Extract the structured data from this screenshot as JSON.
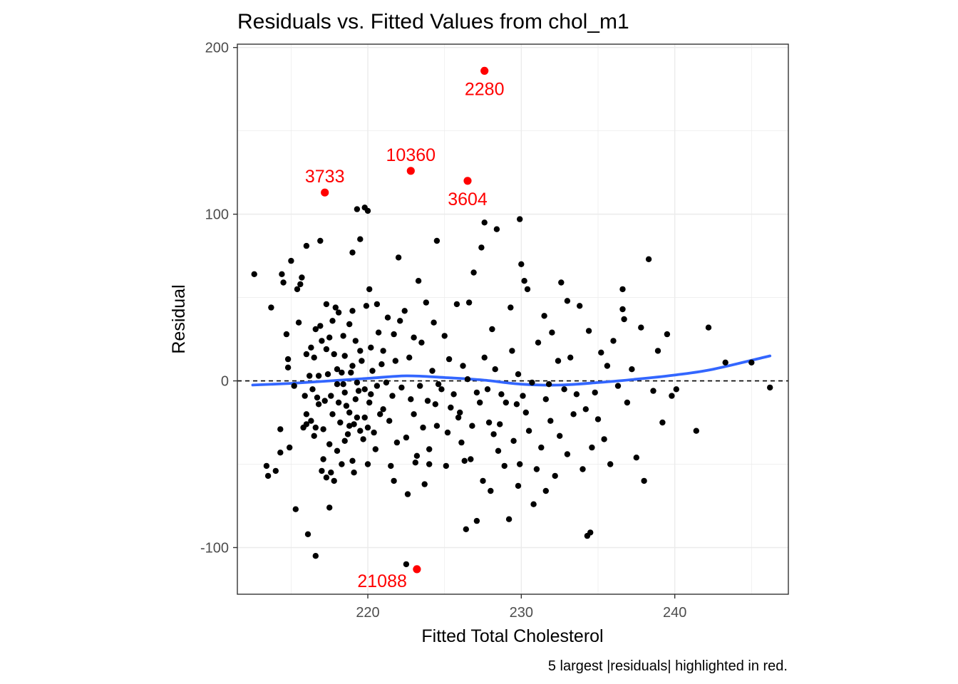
{
  "chart_data": {
    "type": "scatter",
    "title": "Residuals vs. Fitted Values from chol_m1",
    "xlabel": "Fitted Total Cholesterol",
    "ylabel": "Residual",
    "caption": "5 largest |residuals| highlighted in red.",
    "xlim": [
      211.5,
      247.4
    ],
    "ylim": [
      -128,
      202
    ],
    "x_ticks": [
      220,
      230,
      240
    ],
    "y_ticks": [
      -100,
      0,
      100,
      200
    ],
    "grid": true,
    "reference_line": {
      "y": 0,
      "style": "dashed",
      "color": "#000000"
    },
    "smooth": {
      "method": "loess",
      "color": "#3366FF",
      "x": [
        212.5,
        215,
        217.5,
        220,
        222.5,
        225,
        227.5,
        230,
        232.5,
        235,
        237.5,
        240,
        242.5,
        246.2
      ],
      "y": [
        -2.5,
        -1.5,
        0,
        1.5,
        3,
        2,
        0.5,
        -2,
        -2.5,
        -1,
        1,
        3.5,
        7,
        15
      ]
    },
    "highlight_color": "#FF0000",
    "highlighted": [
      {
        "id": "2280",
        "x": 227.6,
        "y": 186,
        "label_pos": "below"
      },
      {
        "id": "10360",
        "x": 222.8,
        "y": 126,
        "label_pos": "above"
      },
      {
        "id": "3733",
        "x": 217.2,
        "y": 113,
        "label_pos": "above"
      },
      {
        "id": "3604",
        "x": 226.5,
        "y": 120,
        "label_pos": "below"
      },
      {
        "id": "21088",
        "x": 223.2,
        "y": -113,
        "label_pos": "left"
      }
    ],
    "points": [
      [
        212.6,
        64
      ],
      [
        213.4,
        -51
      ],
      [
        213.5,
        -57
      ],
      [
        213.7,
        44
      ],
      [
        214,
        -54
      ],
      [
        214.3,
        -43
      ],
      [
        214.3,
        -29
      ],
      [
        214.4,
        64
      ],
      [
        214.5,
        59
      ],
      [
        214.7,
        28
      ],
      [
        214.8,
        13
      ],
      [
        214.8,
        8
      ],
      [
        214.9,
        -40
      ],
      [
        215,
        72
      ],
      [
        215.2,
        -3
      ],
      [
        215.3,
        -77
      ],
      [
        215.4,
        55
      ],
      [
        215.5,
        35
      ],
      [
        215.6,
        58
      ],
      [
        215.7,
        62
      ],
      [
        215.8,
        -28
      ],
      [
        215.9,
        -9
      ],
      [
        216,
        -20
      ],
      [
        216,
        16
      ],
      [
        216,
        -26
      ],
      [
        216,
        81
      ],
      [
        216.1,
        -92
      ],
      [
        216.2,
        3
      ],
      [
        216.3,
        20
      ],
      [
        216.3,
        -24
      ],
      [
        216.4,
        -5
      ],
      [
        216.5,
        14
      ],
      [
        216.5,
        -33
      ],
      [
        216.6,
        -28
      ],
      [
        216.6,
        -105
      ],
      [
        216.6,
        31
      ],
      [
        216.7,
        -10
      ],
      [
        216.8,
        -14
      ],
      [
        216.8,
        3
      ],
      [
        216.9,
        33
      ],
      [
        216.9,
        84
      ],
      [
        217,
        24
      ],
      [
        217,
        -54
      ],
      [
        217.1,
        -29
      ],
      [
        217.1,
        -47
      ],
      [
        217.2,
        -12
      ],
      [
        217.3,
        46
      ],
      [
        217.3,
        19
      ],
      [
        217.3,
        -58
      ],
      [
        217.4,
        4
      ],
      [
        217.5,
        -76
      ],
      [
        217.5,
        -38
      ],
      [
        217.5,
        26
      ],
      [
        217.6,
        -55
      ],
      [
        217.6,
        -9
      ],
      [
        217.7,
        -20
      ],
      [
        217.7,
        36
      ],
      [
        217.8,
        -60
      ],
      [
        217.8,
        16
      ],
      [
        217.9,
        44
      ],
      [
        218,
        7
      ],
      [
        218,
        -2
      ],
      [
        218,
        -42
      ],
      [
        218.1,
        -13
      ],
      [
        218.1,
        41
      ],
      [
        218.2,
        -25
      ],
      [
        218.3,
        -50
      ],
      [
        218.3,
        5
      ],
      [
        218.4,
        -2
      ],
      [
        218.4,
        27
      ],
      [
        218.5,
        15
      ],
      [
        218.5,
        -36
      ],
      [
        218.5,
        -7
      ],
      [
        218.6,
        -15
      ],
      [
        218.7,
        -32
      ],
      [
        218.8,
        -27
      ],
      [
        218.8,
        34
      ],
      [
        218.8,
        -19
      ],
      [
        218.9,
        5
      ],
      [
        219,
        42
      ],
      [
        219,
        -48
      ],
      [
        219,
        77
      ],
      [
        219,
        9
      ],
      [
        219.1,
        -26
      ],
      [
        219.1,
        -55
      ],
      [
        219.2,
        -11
      ],
      [
        219.2,
        24
      ],
      [
        219.3,
        -22
      ],
      [
        219.3,
        103
      ],
      [
        219.3,
        -1
      ],
      [
        219.4,
        -6
      ],
      [
        219.5,
        18
      ],
      [
        219.5,
        -30
      ],
      [
        219.6,
        12
      ],
      [
        219.7,
        -35
      ],
      [
        219.8,
        -22
      ],
      [
        219.8,
        -5
      ],
      [
        219.9,
        45
      ],
      [
        220,
        -50
      ],
      [
        220,
        -28
      ],
      [
        220.1,
        55
      ],
      [
        220.1,
        -13
      ],
      [
        220.2,
        20
      ],
      [
        220.2,
        -8
      ],
      [
        220.3,
        6
      ],
      [
        220.4,
        -31
      ],
      [
        220.5,
        -41
      ],
      [
        220.6,
        46
      ],
      [
        220.6,
        -3
      ],
      [
        220.7,
        29
      ],
      [
        220.8,
        -20
      ],
      [
        220.9,
        10
      ],
      [
        221,
        18
      ],
      [
        221,
        -17
      ],
      [
        221.2,
        -1
      ],
      [
        221.3,
        38
      ],
      [
        221.4,
        -24
      ],
      [
        221.5,
        -51
      ],
      [
        221.6,
        -9
      ],
      [
        221.7,
        -60
      ],
      [
        221.7,
        28
      ],
      [
        221.8,
        12
      ],
      [
        221.9,
        -37
      ],
      [
        222,
        74
      ],
      [
        222.1,
        36
      ],
      [
        222.2,
        -4
      ],
      [
        222.4,
        42
      ],
      [
        222.5,
        -34
      ],
      [
        222.6,
        -68
      ],
      [
        222.7,
        14
      ],
      [
        222.8,
        -11
      ],
      [
        223,
        26
      ],
      [
        223,
        -20
      ],
      [
        223.1,
        -49
      ],
      [
        223.2,
        -45
      ],
      [
        223.3,
        60
      ],
      [
        223.4,
        -3
      ],
      [
        223.5,
        23
      ],
      [
        223.6,
        -28
      ],
      [
        223.7,
        -62
      ],
      [
        223.8,
        47
      ],
      [
        223.9,
        -12
      ],
      [
        224,
        -41
      ],
      [
        224,
        -50
      ],
      [
        224.2,
        6
      ],
      [
        224.3,
        35
      ],
      [
        224.4,
        -14
      ],
      [
        224.5,
        -27
      ],
      [
        224.6,
        -2
      ],
      [
        224.8,
        -5
      ],
      [
        225,
        27
      ],
      [
        225.1,
        -51
      ],
      [
        225.2,
        -31
      ],
      [
        225.3,
        13
      ],
      [
        225.4,
        -16
      ],
      [
        225.6,
        -8
      ],
      [
        225.8,
        46
      ],
      [
        225.9,
        -22
      ],
      [
        226,
        -19
      ],
      [
        226.1,
        -37
      ],
      [
        226.2,
        9
      ],
      [
        226.3,
        -48
      ],
      [
        226.4,
        -89
      ],
      [
        226.5,
        1
      ],
      [
        226.6,
        47
      ],
      [
        226.8,
        -27
      ],
      [
        226.9,
        65
      ],
      [
        227.1,
        -7
      ],
      [
        227.3,
        -13
      ],
      [
        227.4,
        80
      ],
      [
        227.5,
        -60
      ],
      [
        227.6,
        14
      ],
      [
        227.8,
        -5
      ],
      [
        227.9,
        -25
      ],
      [
        228,
        -66
      ],
      [
        228.1,
        31
      ],
      [
        228.2,
        -32
      ],
      [
        228.3,
        7
      ],
      [
        228.5,
        -42
      ],
      [
        228.6,
        -26
      ],
      [
        228.7,
        -8
      ],
      [
        228.9,
        -51
      ],
      [
        229,
        -13
      ],
      [
        229.2,
        -83
      ],
      [
        229.3,
        44
      ],
      [
        229.4,
        18
      ],
      [
        229.5,
        -36
      ],
      [
        229.7,
        -14
      ],
      [
        229.8,
        4
      ],
      [
        229.9,
        -50
      ],
      [
        230,
        70
      ],
      [
        230.1,
        -9
      ],
      [
        230.3,
        -19
      ],
      [
        230.4,
        55
      ],
      [
        230.5,
        -30
      ],
      [
        230.7,
        -1
      ],
      [
        230.8,
        -74
      ],
      [
        231,
        -53
      ],
      [
        231.1,
        23
      ],
      [
        231.3,
        -40
      ],
      [
        231.5,
        39
      ],
      [
        231.6,
        -11
      ],
      [
        231.8,
        -2
      ],
      [
        231.9,
        -24
      ],
      [
        232,
        29
      ],
      [
        232.2,
        -57
      ],
      [
        232.4,
        12
      ],
      [
        232.5,
        -33
      ],
      [
        232.6,
        59
      ],
      [
        232.8,
        -5
      ],
      [
        233,
        -44
      ],
      [
        233.2,
        14
      ],
      [
        233.4,
        -20
      ],
      [
        233.6,
        -8
      ],
      [
        233.8,
        45
      ],
      [
        234,
        -53
      ],
      [
        234.2,
        -17
      ],
      [
        234.4,
        30
      ],
      [
        234.6,
        -40
      ],
      [
        234.8,
        -7
      ],
      [
        235,
        -23
      ],
      [
        235.2,
        17
      ],
      [
        235.4,
        -35
      ],
      [
        235.6,
        9
      ],
      [
        235.8,
        -50
      ],
      [
        236,
        24
      ],
      [
        236.3,
        -3
      ],
      [
        236.6,
        55
      ],
      [
        236.9,
        -13
      ],
      [
        237.2,
        7
      ],
      [
        237.5,
        -46
      ],
      [
        237.8,
        32
      ],
      [
        238,
        -60
      ],
      [
        238.3,
        73
      ],
      [
        238.6,
        -6
      ],
      [
        238.9,
        18
      ],
      [
        239.2,
        -25
      ],
      [
        239.5,
        28
      ],
      [
        239.8,
        -9
      ],
      [
        240.1,
        -5
      ],
      [
        241.4,
        -30
      ],
      [
        242.2,
        32
      ],
      [
        243.3,
        11
      ],
      [
        245,
        11
      ],
      [
        246.2,
        -4
      ],
      [
        222.5,
        -110
      ],
      [
        234.3,
        -93
      ],
      [
        234.5,
        -91
      ],
      [
        226.7,
        -47
      ],
      [
        231.6,
        -66
      ],
      [
        227.1,
        -84
      ],
      [
        229.8,
        -63
      ],
      [
        236.7,
        37
      ],
      [
        236.6,
        43
      ],
      [
        233,
        48
      ],
      [
        230.2,
        60
      ],
      [
        229.9,
        97
      ],
      [
        228.4,
        91
      ],
      [
        227.6,
        95
      ],
      [
        224.5,
        84
      ],
      [
        219.5,
        85
      ],
      [
        219.8,
        104
      ],
      [
        220,
        102
      ]
    ]
  }
}
